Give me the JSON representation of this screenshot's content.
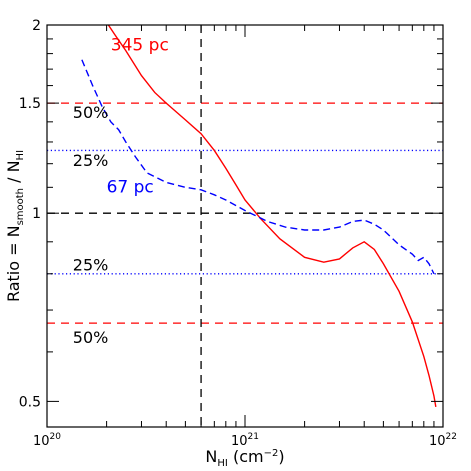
{
  "chart_data": {
    "type": "line",
    "title": "",
    "xlabel": {
      "main": "N",
      "sub": "HI",
      "units": " (cm",
      "sup": "−2",
      "close": ")"
    },
    "ylabel": {
      "main": "Ratio = N",
      "sub1": "smooth",
      "mid": " / N",
      "sub2": "HI"
    },
    "x_scale": "log",
    "y_scale": "log",
    "xlim": [
      1e+20,
      1e+22
    ],
    "ylim": [
      0.455,
      2.0
    ],
    "x_ticks": [
      {
        "value": 1e+20,
        "base": "10",
        "exp": "20"
      },
      {
        "value": 1e+21,
        "base": "10",
        "exp": "21"
      },
      {
        "value": 1e+22,
        "base": "10",
        "exp": "22"
      }
    ],
    "y_ticks": [
      {
        "value": 0.5,
        "label": "0.5"
      },
      {
        "value": 1.0,
        "label": "1"
      },
      {
        "value": 1.5,
        "label": "1.5"
      },
      {
        "value": 2.0,
        "label": "2"
      }
    ],
    "reference_lines": [
      {
        "orientation": "h",
        "value": 1.5,
        "style": "dashed",
        "color": "#ff0000"
      },
      {
        "orientation": "h",
        "value": 1.26,
        "style": "dotted",
        "color": "#0000ff"
      },
      {
        "orientation": "h",
        "value": 1.0,
        "style": "dashed",
        "color": "#000000"
      },
      {
        "orientation": "h",
        "value": 0.8,
        "style": "dotted",
        "color": "#0000ff"
      },
      {
        "orientation": "h",
        "value": 0.667,
        "style": "dashed",
        "color": "#ff0000"
      },
      {
        "orientation": "v",
        "value": 6e+20,
        "style": "dashed",
        "color": "#000000"
      }
    ],
    "reference_labels": [
      {
        "text": "50%",
        "x": 1.35e+20,
        "y": 1.42
      },
      {
        "text": "25%",
        "x": 1.35e+20,
        "y": 1.19
      },
      {
        "text": "25%",
        "x": 1.35e+20,
        "y": 0.81
      },
      {
        "text": "50%",
        "x": 1.35e+20,
        "y": 0.62
      }
    ],
    "series": [
      {
        "name": "345 pc",
        "color": "#ff0000",
        "style": "solid",
        "label_pos": {
          "x": 2.1e+20,
          "y": 1.82
        },
        "points": [
          [
            2e+20,
            2.02
          ],
          [
            2.2e+20,
            1.93
          ],
          [
            2.5e+20,
            1.82
          ],
          [
            3e+20,
            1.66
          ],
          [
            3.5e+20,
            1.56
          ],
          [
            4e+20,
            1.5
          ],
          [
            5e+20,
            1.41
          ],
          [
            6e+20,
            1.34
          ],
          [
            7e+20,
            1.26
          ],
          [
            8e+20,
            1.18
          ],
          [
            9e+20,
            1.11
          ],
          [
            1e+21,
            1.05
          ],
          [
            1.2e+21,
            0.98
          ],
          [
            1.5e+21,
            0.91
          ],
          [
            2e+21,
            0.85
          ],
          [
            2.5e+21,
            0.835
          ],
          [
            3e+21,
            0.845
          ],
          [
            3.5e+21,
            0.88
          ],
          [
            4e+21,
            0.9
          ],
          [
            4.5e+21,
            0.875
          ],
          [
            5e+21,
            0.83
          ],
          [
            6e+21,
            0.75
          ],
          [
            7e+21,
            0.67
          ],
          [
            8e+21,
            0.59
          ],
          [
            8.5e+21,
            0.55
          ],
          [
            9e+21,
            0.51
          ],
          [
            9.2e+21,
            0.49
          ]
        ]
      },
      {
        "name": "67 pc",
        "color": "#0000ff",
        "style": "dashed",
        "label_pos": {
          "x": 2e+20,
          "y": 1.08
        },
        "points": [
          [
            1.5e+20,
            1.76
          ],
          [
            1.7e+20,
            1.6
          ],
          [
            1.9e+20,
            1.48
          ],
          [
            2.1e+20,
            1.4
          ],
          [
            2.3e+20,
            1.36
          ],
          [
            2.5e+20,
            1.3
          ],
          [
            2.8e+20,
            1.23
          ],
          [
            3.2e+20,
            1.16
          ],
          [
            4e+20,
            1.12
          ],
          [
            5e+20,
            1.1
          ],
          [
            6e+20,
            1.09
          ],
          [
            7e+20,
            1.07
          ],
          [
            8e+20,
            1.05
          ],
          [
            1e+21,
            1.01
          ],
          [
            1.3e+21,
            0.97
          ],
          [
            1.6e+21,
            0.95
          ],
          [
            2e+21,
            0.94
          ],
          [
            2.5e+21,
            0.94
          ],
          [
            3e+21,
            0.95
          ],
          [
            3.5e+21,
            0.97
          ],
          [
            4e+21,
            0.975
          ],
          [
            4.5e+21,
            0.96
          ],
          [
            5e+21,
            0.94
          ],
          [
            6e+21,
            0.89
          ],
          [
            7e+21,
            0.86
          ],
          [
            7.5e+21,
            0.84
          ],
          [
            8e+21,
            0.85
          ],
          [
            8.5e+21,
            0.83
          ],
          [
            9e+21,
            0.8
          ]
        ]
      }
    ]
  }
}
